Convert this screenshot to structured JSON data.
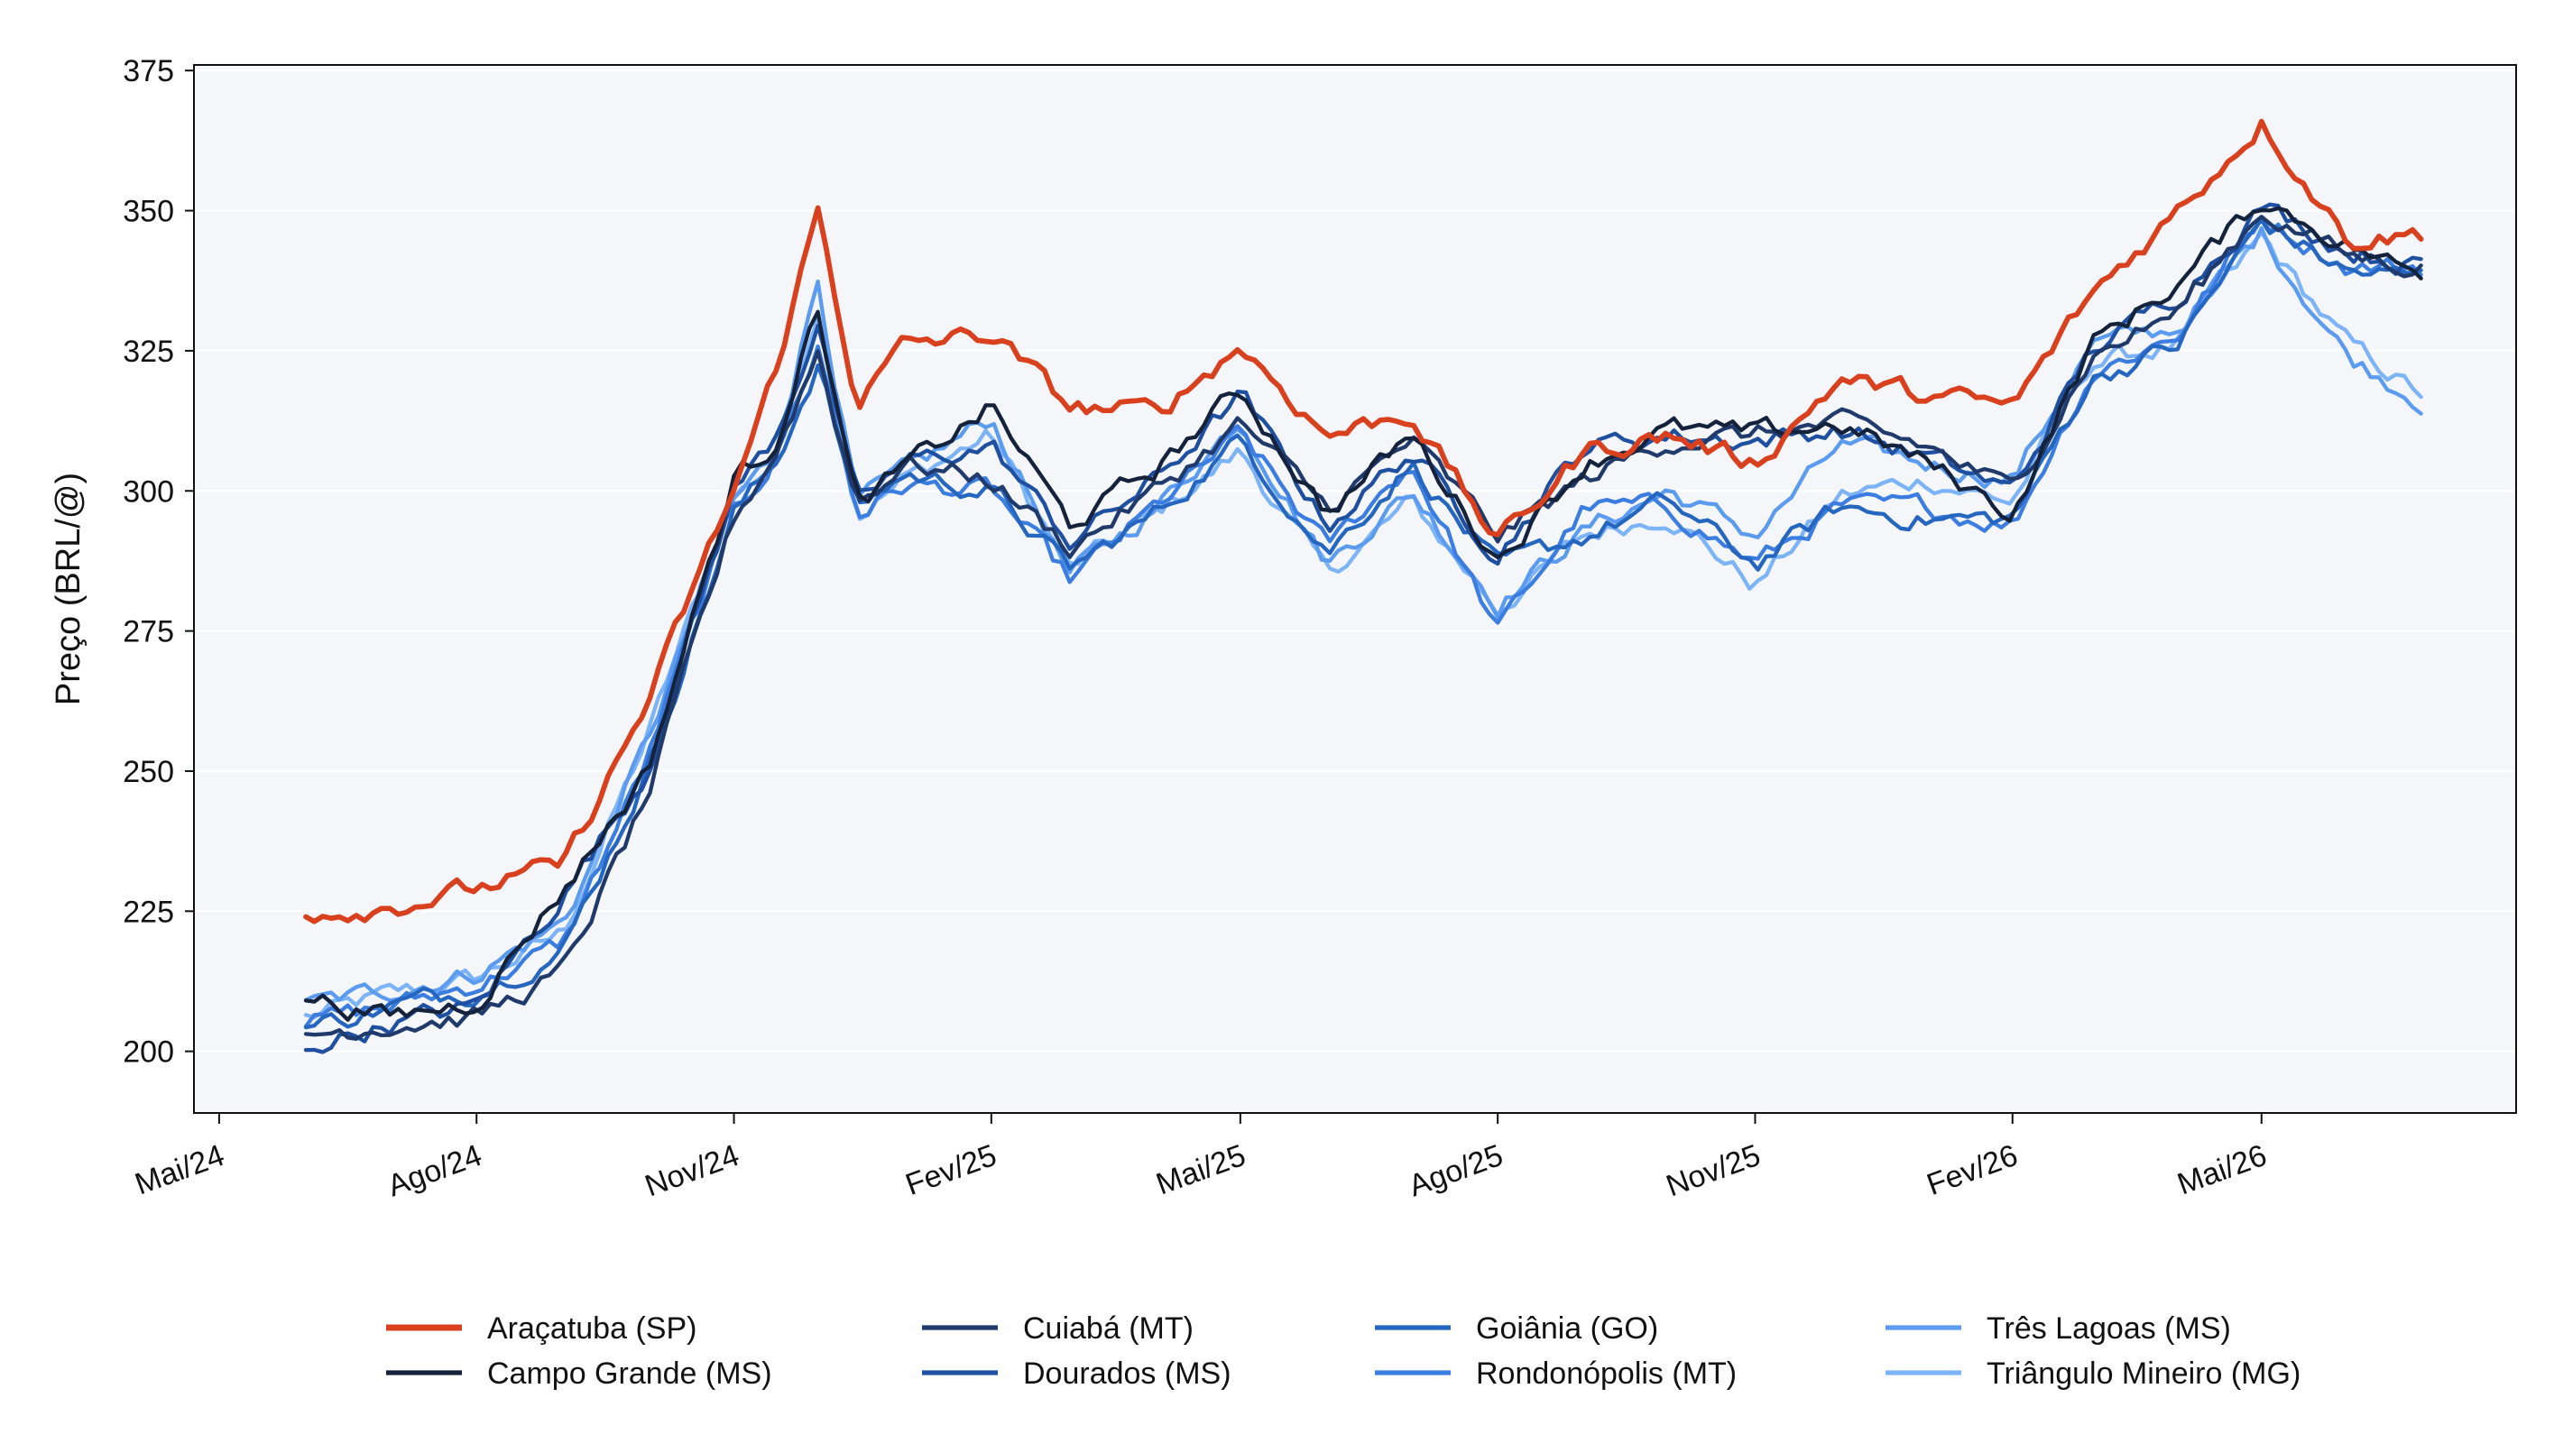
{
  "chart_data": {
    "type": "line",
    "title": "",
    "xlabel": "",
    "ylabel": "Preço (BRL/@)",
    "ylim": [
      189,
      376
    ],
    "yticks": [
      200,
      225,
      250,
      275,
      300,
      325,
      350,
      375
    ],
    "x_ticks": [
      "Mai/24",
      "Ago/24",
      "Nov/24",
      "Fev/25",
      "Mai/25",
      "Ago/25",
      "Nov/25",
      "Fev/26",
      "Mai/26"
    ],
    "x_tick_positions": [
      "2024-05-01",
      "2024-08-01",
      "2024-11-01",
      "2025-02-01",
      "2025-05-01",
      "2025-08-01",
      "2025-11-01",
      "2026-02-01",
      "2026-05-01"
    ],
    "xlim": [
      "2024-04-22",
      "2026-07-31"
    ],
    "grid": "horizontal",
    "legend_position": "bottom",
    "dates": [
      "2024-06-01",
      "2024-07-01",
      "2024-08-01",
      "2024-09-01",
      "2024-10-01",
      "2024-11-01",
      "2024-11-15",
      "2024-12-01",
      "2024-12-15",
      "2025-01-01",
      "2025-02-01",
      "2025-03-01",
      "2025-04-01",
      "2025-05-01",
      "2025-06-01",
      "2025-07-01",
      "2025-08-01",
      "2025-09-01",
      "2025-10-01",
      "2025-11-01",
      "2025-12-01",
      "2026-01-01",
      "2026-02-01",
      "2026-03-01",
      "2026-04-01",
      "2026-05-01",
      "2026-06-01",
      "2026-06-28"
    ],
    "series": [
      {
        "name": "Araçatuba (SP)",
        "color": "#d9411e",
        "width": 3.2,
        "values": [
          225,
          226,
          229,
          233,
          262,
          300,
          320,
          350,
          316,
          326,
          328,
          315,
          314,
          326,
          310,
          314,
          291,
          307,
          310,
          305,
          320,
          317,
          315,
          335,
          350,
          366,
          345,
          346
        ]
      },
      {
        "name": "Campo Grande (MS)",
        "color": "#14233b",
        "width": 2.4,
        "values": [
          210,
          206,
          209,
          229,
          250,
          302,
          308,
          333,
          297,
          304,
          315,
          294,
          304,
          318,
          296,
          310,
          288,
          305,
          311,
          310,
          312,
          305,
          296,
          326,
          337,
          352,
          344,
          338
        ]
      },
      {
        "name": "Cuiabá (MT)",
        "color": "#1f3a6b",
        "width": 2.4,
        "values": [
          203,
          205,
          206,
          214,
          245,
          295,
          306,
          325,
          298,
          305,
          302,
          290,
          300,
          312,
          297,
          309,
          292,
          302,
          309,
          310,
          312,
          308,
          300,
          324,
          332,
          350,
          342,
          340
        ]
      },
      {
        "name": "Dourados (MS)",
        "color": "#1e4fa0",
        "width": 2.4,
        "values": [
          201,
          205,
          208,
          228,
          250,
          300,
          309,
          330,
          297,
          305,
          308,
          291,
          302,
          317,
          294,
          307,
          289,
          308,
          310,
          309,
          311,
          306,
          300,
          325,
          335,
          351,
          343,
          340
        ]
      },
      {
        "name": "Goiânia (GO)",
        "color": "#2566c0",
        "width": 2.4,
        "values": [
          204,
          208,
          211,
          218,
          250,
          296,
          304,
          323,
          297,
          303,
          300,
          286,
          296,
          309,
          289,
          305,
          286,
          292,
          298,
          287,
          297,
          295,
          295,
          320,
          326,
          348,
          339,
          338
        ]
      },
      {
        "name": "Rondonópolis (MT)",
        "color": "#3b7de0",
        "width": 2.4,
        "values": [
          205,
          208,
          212,
          219,
          252,
          297,
          305,
          326,
          296,
          301,
          300,
          284,
          297,
          310,
          290,
          305,
          275,
          297,
          297,
          287,
          297,
          297,
          294,
          321,
          328,
          349,
          340,
          340
        ]
      },
      {
        "name": "Três Lagoas (MS)",
        "color": "#5b9bf0",
        "width": 2.4,
        "values": [
          208,
          211,
          214,
          223,
          255,
          298,
          306,
          338,
          298,
          303,
          313,
          285,
          297,
          313,
          287,
          300,
          280,
          293,
          300,
          292,
          308,
          305,
          302,
          326,
          329,
          346,
          324,
          316
        ]
      },
      {
        "name": "Triângulo Mineiro (MG)",
        "color": "#7db4f7",
        "width": 2.4,
        "values": [
          206,
          210,
          213,
          221,
          256,
          299,
          305,
          333,
          296,
          302,
          310,
          286,
          296,
          307,
          285,
          298,
          279,
          292,
          296,
          283,
          299,
          302,
          298,
          323,
          326,
          345,
          326,
          317
        ]
      }
    ]
  }
}
